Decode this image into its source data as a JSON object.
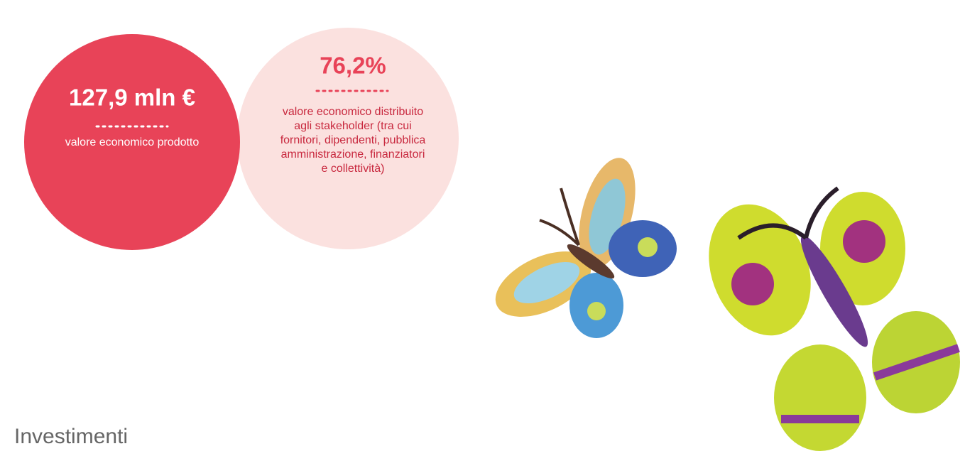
{
  "produced": {
    "value": "127,9 mln €",
    "label": "valore economico prodotto"
  },
  "distributed": {
    "value": "76,2%",
    "label_lines": [
      "valore economico distribuito",
      "agli stakeholder (tra cui",
      "fornitori, dipendenti, pubblica",
      "amministrazione, finanziatori",
      "e collettività)"
    ]
  },
  "section_title": "Investimenti"
}
